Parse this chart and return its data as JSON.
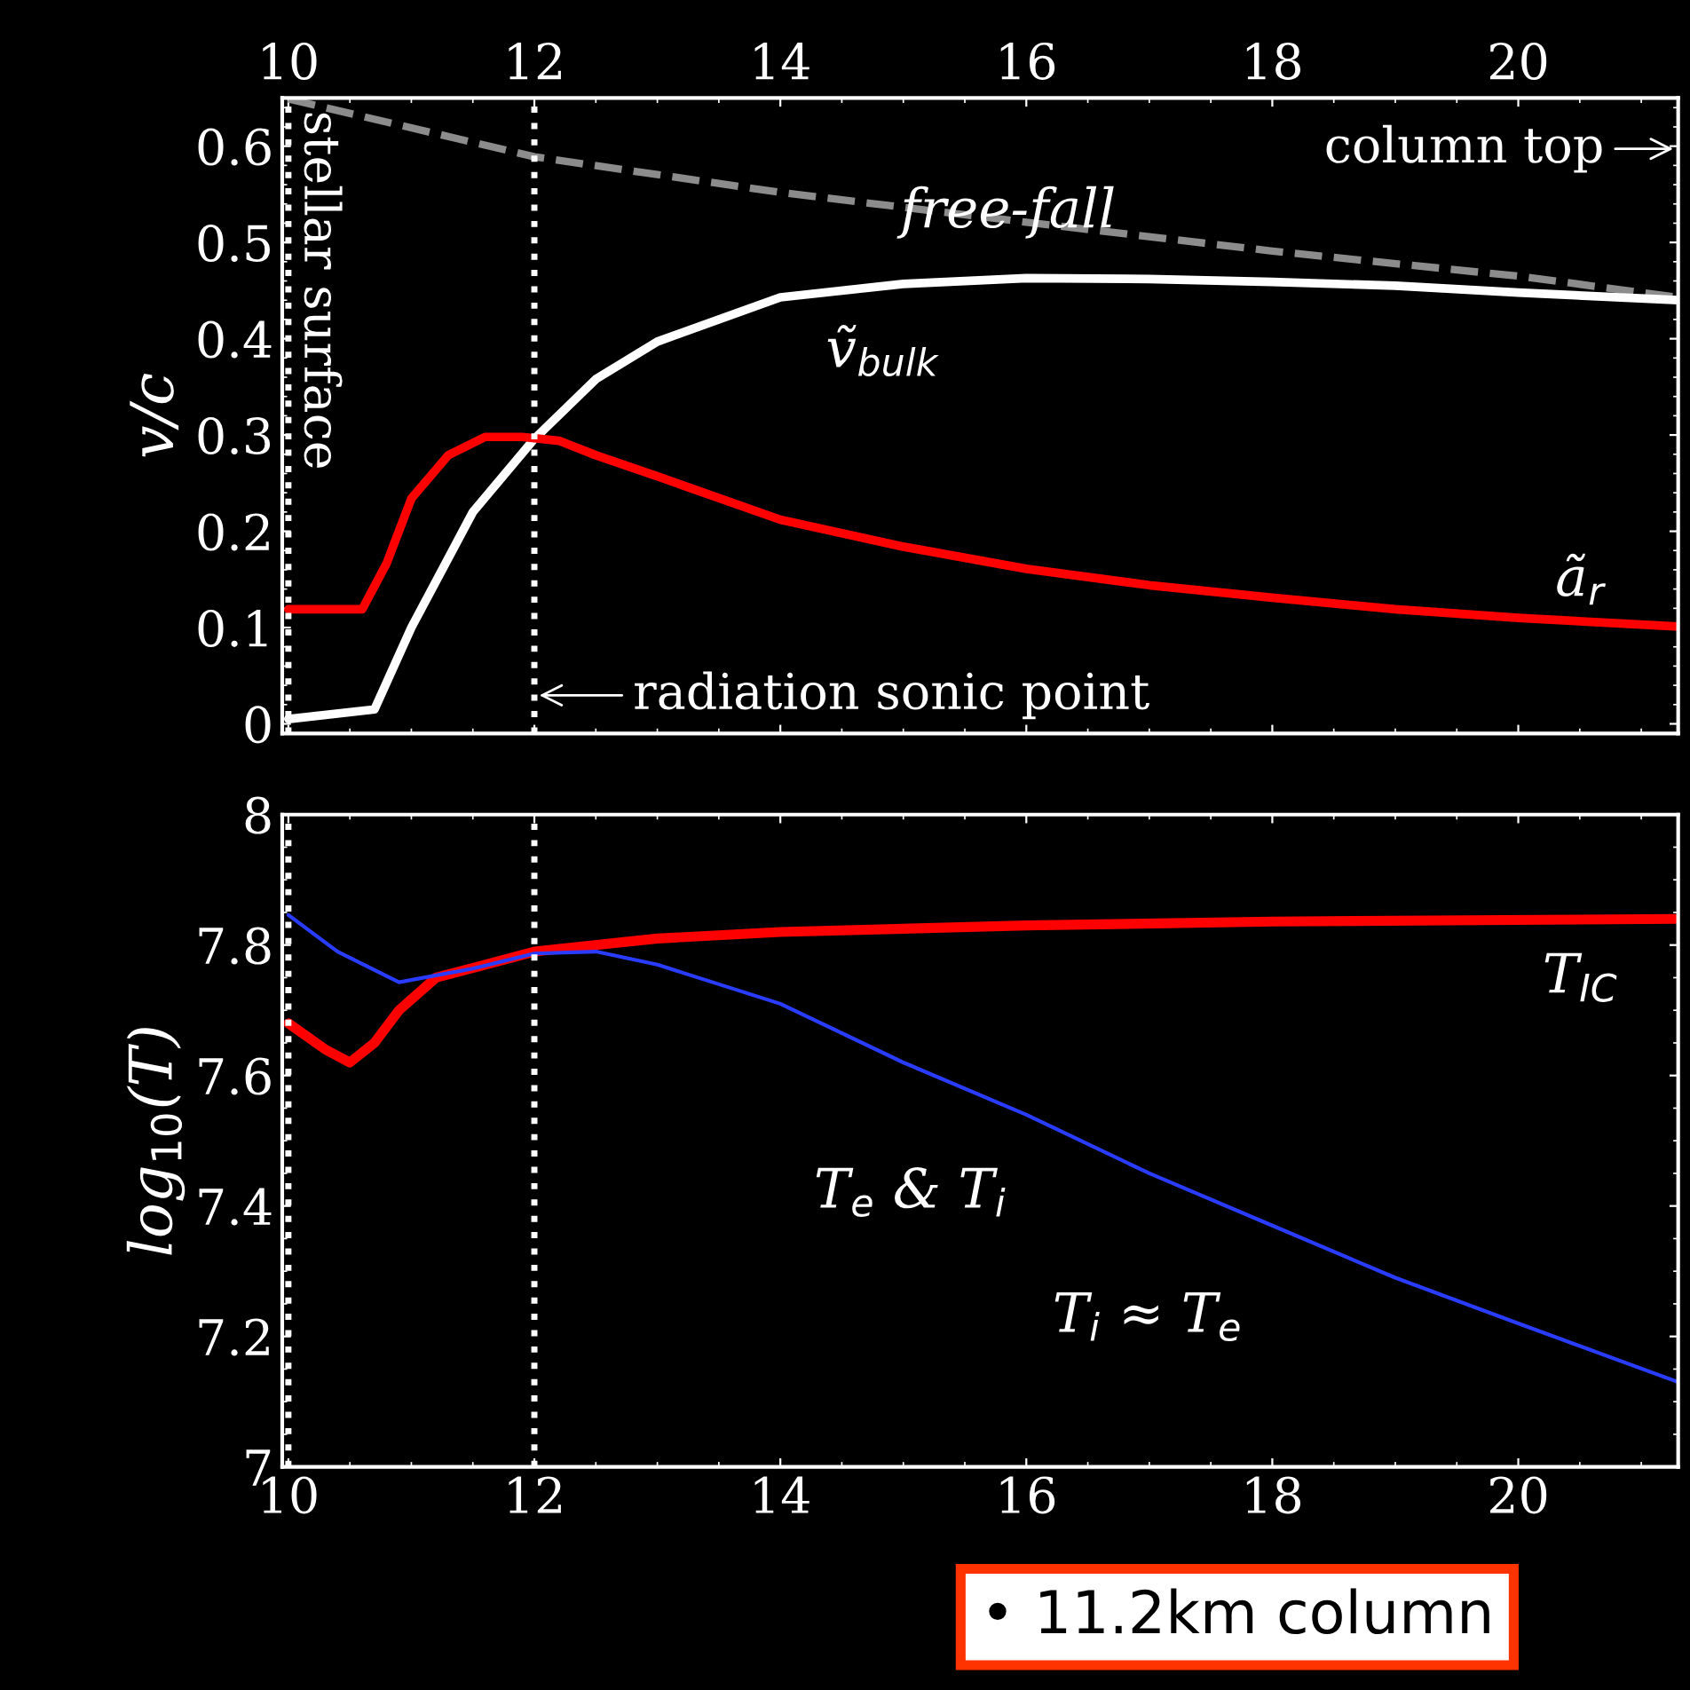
{
  "chart_data": [
    {
      "type": "line",
      "ylabel": "v/c",
      "xlim": [
        9.95,
        21.3
      ],
      "ylim": [
        -0.01,
        0.65
      ],
      "xticks": [
        10,
        12,
        14,
        16,
        18,
        20
      ],
      "yticks": [
        0,
        0.1,
        0.2,
        0.3,
        0.4,
        0.5,
        0.6
      ],
      "grid": false,
      "legend": false,
      "series": [
        {
          "name": "free-fall",
          "color": "#8c8c8c",
          "line_style": "dashed",
          "x": [
            10,
            12,
            14,
            16,
            18,
            20,
            21.3
          ],
          "values": [
            0.649,
            0.589,
            0.552,
            0.521,
            0.491,
            0.465,
            0.443
          ]
        },
        {
          "name": "ṽ$_{bulk}$",
          "color": "#ffffff",
          "line_style": "solid",
          "x": [
            10,
            10.7,
            11,
            11.5,
            12,
            12.5,
            13,
            14,
            15,
            16,
            17,
            18,
            19,
            20,
            21.3
          ],
          "values": [
            0.005,
            0.015,
            0.1,
            0.22,
            0.296,
            0.358,
            0.397,
            0.443,
            0.457,
            0.463,
            0.462,
            0.459,
            0.455,
            0.448,
            0.44
          ]
        },
        {
          "name": "ã$_{r}$",
          "color": "#ff0000",
          "line_style": "solid",
          "x": [
            10,
            10.6,
            10.8,
            11,
            11.3,
            11.6,
            11.9,
            12.2,
            12.5,
            13,
            14,
            15,
            16,
            17,
            18,
            19,
            20,
            21.3
          ],
          "values": [
            0.119,
            0.119,
            0.167,
            0.234,
            0.279,
            0.298,
            0.298,
            0.294,
            0.279,
            0.257,
            0.212,
            0.184,
            0.161,
            0.144,
            0.131,
            0.119,
            0.11,
            0.101
          ]
        }
      ],
      "ref_lines": [
        {
          "axis": "x",
          "value": 10,
          "label": "stellar surface",
          "color": "#ffffff",
          "line_style": "dotted"
        },
        {
          "axis": "x",
          "value": 12,
          "label": "radiation sonic point",
          "color": "#ffffff",
          "line_style": "dotted"
        }
      ],
      "annotations": [
        "column top"
      ]
    },
    {
      "type": "line",
      "ylabel": "log$_{10}$(T)",
      "xlim": [
        9.95,
        21.3
      ],
      "ylim": [
        7,
        8
      ],
      "xticks": [
        10,
        12,
        14,
        16,
        18,
        20
      ],
      "yticks": [
        7,
        7.2,
        7.4,
        7.6,
        7.8,
        8
      ],
      "grid": false,
      "legend": false,
      "series": [
        {
          "name": "T$_{IC}$",
          "color": "#ff0000",
          "line_style": "solid",
          "x": [
            10,
            10.3,
            10.5,
            10.7,
            10.9,
            11.2,
            11.6,
            12,
            13,
            14,
            16,
            18,
            21.3
          ],
          "values": [
            7.68,
            7.64,
            7.62,
            7.65,
            7.7,
            7.75,
            7.77,
            7.79,
            7.81,
            7.82,
            7.83,
            7.836,
            7.84
          ]
        },
        {
          "name": "T$_{e}$ & T$_{i}$",
          "color": "#2a3cff",
          "line_style": "solid",
          "x": [
            10,
            10.4,
            10.9,
            11.5,
            12,
            12.5,
            13,
            14,
            15,
            16,
            17,
            18,
            19,
            20,
            21.3
          ],
          "values": [
            7.846,
            7.79,
            7.743,
            7.764,
            7.787,
            7.79,
            7.77,
            7.71,
            7.62,
            7.54,
            7.45,
            7.37,
            7.29,
            7.22,
            7.13
          ]
        }
      ],
      "ref_lines": [
        {
          "axis": "x",
          "value": 10,
          "color": "#ffffff",
          "line_style": "dotted"
        },
        {
          "axis": "x",
          "value": 12,
          "color": "#ffffff",
          "line_style": "dotted"
        }
      ],
      "annotations": [
        "T$_{i}$ ≈ T$_{e}$",
        "• 11.2km column"
      ]
    }
  ]
}
